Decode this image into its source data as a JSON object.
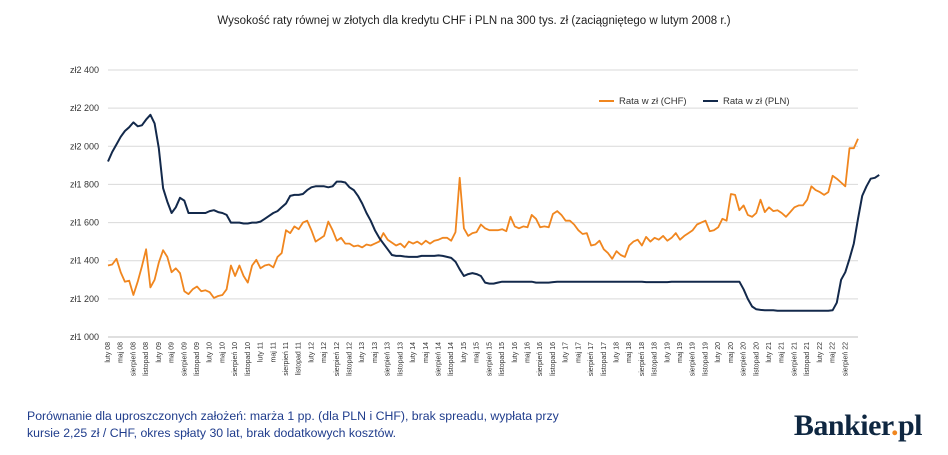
{
  "title": "Wysokość raty równej w złotych dla kredytu CHF i PLN na 300 tys. zł (zaciągniętego w lutym 2008 r.)",
  "footnote": "Porównanie dla uproszczonych założeń: marża 1 pp. (dla PLN i CHF), brak spreadu, wypłata przy kursie 2,25 zł / CHF, okres spłaty 30 lat, brak dodatkowych kosztów.",
  "brand": {
    "name": "Bankier",
    "dot": ".",
    "tld": "pl"
  },
  "chart_data": {
    "type": "line",
    "title": "Wysokość raty równej w złotych dla kredytu CHF i PLN na 300 tys. zł (zaciągniętego w lutym 2008 r.)",
    "ylim": [
      1000,
      2400
    ],
    "yticks": [
      1000,
      1200,
      1400,
      1600,
      1800,
      2000,
      2200,
      2400
    ],
    "ytick_labels": [
      "zł1 000",
      "zł1 200",
      "zł1 400",
      "zł1 600",
      "zł1 800",
      "zł2 000",
      "zł2 200",
      "zł2 400"
    ],
    "grid": "horizontal",
    "legend_position": "top-right",
    "x_labels": [
      "luty 08",
      "maj 08",
      "sierpień 08",
      "listopad 08",
      "luty 09",
      "maj 09",
      "sierpień 09",
      "listopad 09",
      "luty 10",
      "maj 10",
      "sierpień 10",
      "listopad 10",
      "luty 11",
      "maj 11",
      "sierpień 11",
      "listopad 11",
      "luty 12",
      "maj 12",
      "sierpień 12",
      "listopad 12",
      "luty 13",
      "maj 13",
      "sierpień 13",
      "listopad 13",
      "luty 14",
      "maj 14",
      "sierpień 14",
      "listopad 14",
      "luty 15",
      "maj 15",
      "sierpień 15",
      "listopad 15",
      "luty 16",
      "maj 16",
      "sierpień 16",
      "listopad 16",
      "luty 17",
      "maj 17",
      "sierpień 17",
      "listopad 17",
      "luty 18",
      "maj 18",
      "sierpień 18",
      "listopad 18",
      "luty 19",
      "maj 19",
      "sierpień 19",
      "listopad 19",
      "luty 20",
      "maj 20",
      "sierpień 20",
      "listopad 20",
      "luty 21",
      "maj 21",
      "sierpień 21",
      "listopad 21",
      "luty 22",
      "maj 22",
      "sierpień 22"
    ],
    "series": [
      {
        "name": "Rata w zł (CHF)",
        "color": "#f0861f",
        "values": [
          1375,
          1380,
          1410,
          1340,
          1290,
          1295,
          1220,
          1290,
          1370,
          1460,
          1260,
          1300,
          1390,
          1455,
          1420,
          1340,
          1360,
          1335,
          1240,
          1225,
          1250,
          1265,
          1240,
          1245,
          1235,
          1205,
          1215,
          1220,
          1250,
          1375,
          1320,
          1375,
          1320,
          1285,
          1375,
          1405,
          1360,
          1375,
          1380,
          1365,
          1420,
          1440,
          1560,
          1545,
          1580,
          1565,
          1600,
          1610,
          1560,
          1500,
          1515,
          1530,
          1605,
          1560,
          1505,
          1520,
          1490,
          1490,
          1475,
          1480,
          1470,
          1485,
          1480,
          1490,
          1500,
          1545,
          1510,
          1495,
          1480,
          1490,
          1470,
          1500,
          1490,
          1500,
          1485,
          1505,
          1490,
          1505,
          1510,
          1520,
          1520,
          1505,
          1550,
          1835,
          1570,
          1530,
          1545,
          1550,
          1590,
          1570,
          1560,
          1560,
          1560,
          1565,
          1555,
          1630,
          1580,
          1570,
          1580,
          1575,
          1640,
          1620,
          1575,
          1580,
          1575,
          1645,
          1660,
          1640,
          1610,
          1610,
          1590,
          1560,
          1540,
          1545,
          1480,
          1485,
          1505,
          1460,
          1440,
          1410,
          1450,
          1430,
          1420,
          1480,
          1500,
          1510,
          1480,
          1525,
          1500,
          1520,
          1510,
          1530,
          1505,
          1520,
          1545,
          1510,
          1530,
          1545,
          1560,
          1590,
          1600,
          1610,
          1555,
          1560,
          1575,
          1620,
          1610,
          1750,
          1745,
          1665,
          1690,
          1640,
          1630,
          1650,
          1720,
          1655,
          1680,
          1660,
          1665,
          1650,
          1630,
          1655,
          1680,
          1690,
          1690,
          1720,
          1790,
          1770,
          1760,
          1745,
          1760,
          1845,
          1830,
          1810,
          1790,
          1990,
          1990,
          2040
        ]
      },
      {
        "name": "Rata w zł (PLN)",
        "color": "#13294b",
        "values": [
          1920,
          1970,
          2010,
          2050,
          2080,
          2100,
          2125,
          2105,
          2110,
          2140,
          2165,
          2120,
          1990,
          1780,
          1710,
          1650,
          1680,
          1730,
          1715,
          1650,
          1650,
          1650,
          1650,
          1650,
          1660,
          1665,
          1655,
          1650,
          1640,
          1600,
          1600,
          1600,
          1595,
          1595,
          1600,
          1600,
          1605,
          1620,
          1635,
          1650,
          1660,
          1680,
          1700,
          1740,
          1745,
          1745,
          1750,
          1770,
          1785,
          1790,
          1790,
          1790,
          1785,
          1790,
          1815,
          1815,
          1810,
          1785,
          1770,
          1740,
          1700,
          1650,
          1610,
          1560,
          1520,
          1490,
          1460,
          1430,
          1425,
          1425,
          1422,
          1420,
          1420,
          1420,
          1425,
          1425,
          1425,
          1425,
          1428,
          1425,
          1420,
          1415,
          1395,
          1355,
          1320,
          1330,
          1335,
          1330,
          1320,
          1285,
          1280,
          1280,
          1285,
          1290,
          1290,
          1290,
          1290,
          1290,
          1290,
          1290,
          1290,
          1285,
          1285,
          1285,
          1285,
          1288,
          1290,
          1290,
          1290,
          1290,
          1290,
          1290,
          1290,
          1290,
          1290,
          1290,
          1290,
          1290,
          1290,
          1290,
          1290,
          1290,
          1290,
          1290,
          1290,
          1290,
          1290,
          1288,
          1288,
          1288,
          1288,
          1288,
          1288,
          1290,
          1290,
          1290,
          1290,
          1290,
          1290,
          1290,
          1290,
          1290,
          1290,
          1290,
          1290,
          1290,
          1290,
          1290,
          1290,
          1290,
          1250,
          1200,
          1160,
          1145,
          1142,
          1140,
          1140,
          1140,
          1138,
          1138,
          1138,
          1138,
          1138,
          1138,
          1138,
          1138,
          1138,
          1138,
          1138,
          1138,
          1138,
          1140,
          1180,
          1300,
          1340,
          1410,
          1490,
          1620,
          1740,
          1790,
          1830,
          1835,
          1850
        ]
      }
    ]
  }
}
